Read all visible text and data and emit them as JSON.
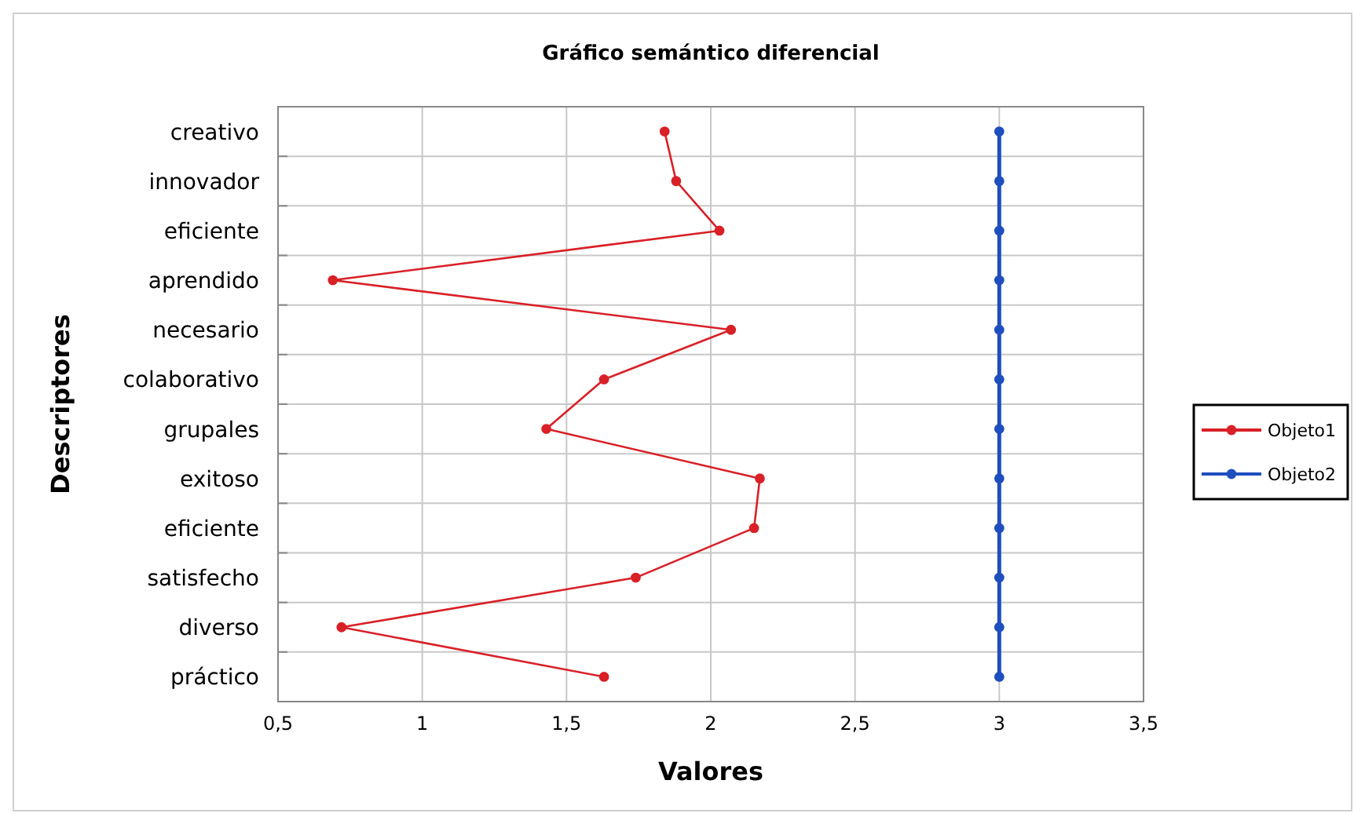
{
  "chart_data": {
    "type": "line",
    "title": "Gráfico semántico diferencial",
    "xlabel": "Valores",
    "ylabel": "Descriptores",
    "orientation": "horizontal",
    "categories": [
      "creativo",
      "innovador",
      "eficiente",
      "aprendido",
      "necesario",
      "colaborativo",
      "grupales",
      "exitoso",
      "eficiente",
      "satisfecho",
      "diverso",
      "práctico"
    ],
    "series": [
      {
        "name": "Objeto1",
        "color": "#d92027",
        "values": [
          1.84,
          1.88,
          2.03,
          0.69,
          2.07,
          1.63,
          1.43,
          2.17,
          2.15,
          1.74,
          0.72,
          1.63
        ]
      },
      {
        "name": "Objeto2",
        "color": "#1f4fbf",
        "values": [
          3,
          3,
          3,
          3,
          3,
          3,
          3,
          3,
          3,
          3,
          3,
          3
        ]
      }
    ],
    "xlim": [
      0.5,
      3.5
    ],
    "xticks": [
      {
        "value": 0.5,
        "label": "0,5"
      },
      1,
      {
        "value": 1.5,
        "label": "1,5"
      },
      2,
      {
        "value": 2.5,
        "label": "2,5"
      },
      3,
      {
        "value": 3.5,
        "label": "3,5"
      }
    ],
    "grid": true,
    "legend": "right",
    "marker": "circle",
    "line_style": "solid"
  }
}
